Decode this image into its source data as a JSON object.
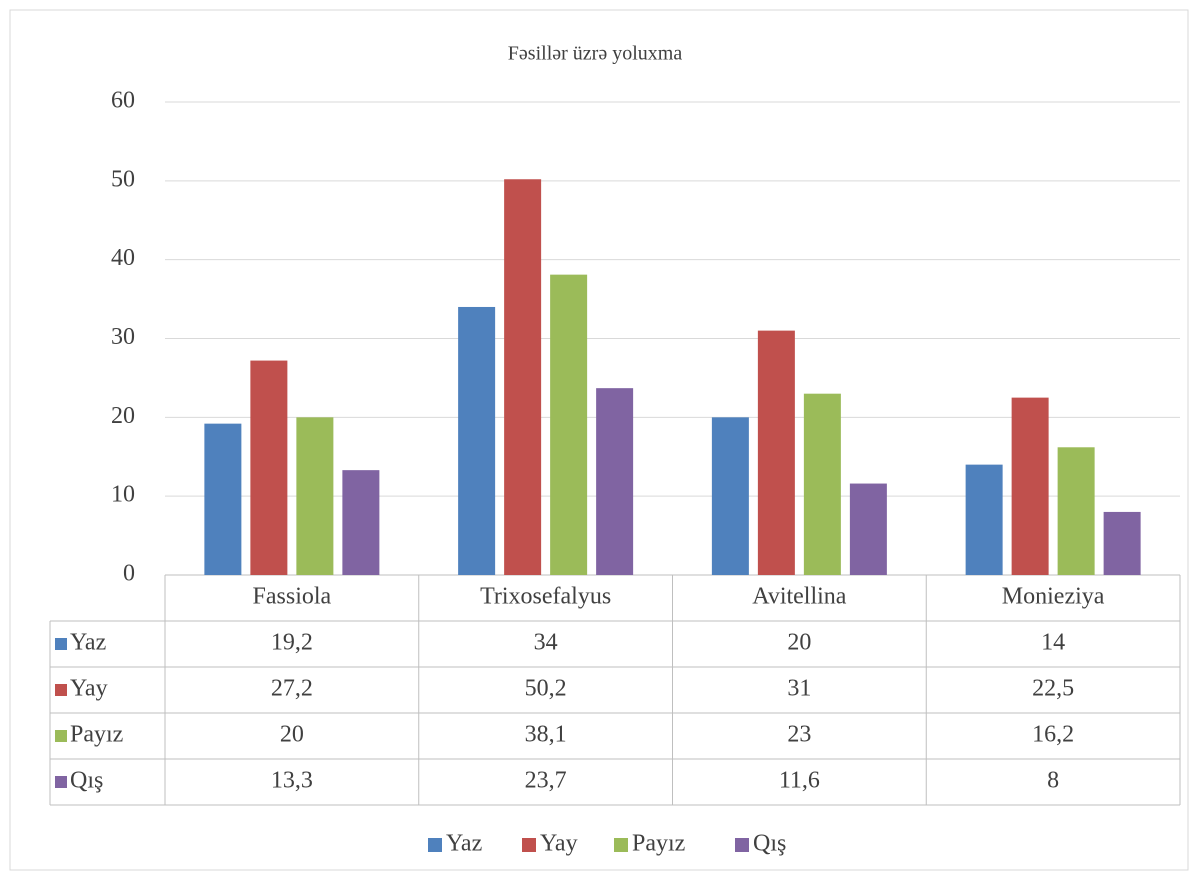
{
  "chart_data": {
    "type": "bar",
    "title": "Fəsillər üzrə yoluxma",
    "categories": [
      "Fassiola",
      "Trixosefalyus",
      "Avitellina",
      "Monieziya"
    ],
    "series": [
      {
        "name": "Yaz",
        "color": "#4f81bd",
        "values": [
          19.2,
          34,
          20,
          14
        ],
        "value_labels": [
          "19,2",
          "34",
          "20",
          "14"
        ]
      },
      {
        "name": "Yay",
        "color": "#c0504d",
        "values": [
          27.2,
          50.2,
          31,
          22.5
        ],
        "value_labels": [
          "27,2",
          "50,2",
          "31",
          "22,5"
        ]
      },
      {
        "name": "Payız",
        "color": "#9bbb59",
        "values": [
          20,
          38.1,
          23,
          16.2
        ],
        "value_labels": [
          "20",
          "38,1",
          "23",
          "16,2"
        ]
      },
      {
        "name": "Qış",
        "color": "#8064a2",
        "values": [
          13.3,
          23.7,
          11.6,
          8
        ],
        "value_labels": [
          "13,3",
          "23,7",
          "11,6",
          "8"
        ]
      }
    ],
    "ylim": [
      0,
      60
    ],
    "yticks": [
      0,
      10,
      20,
      30,
      40,
      50,
      60
    ],
    "grid": true,
    "legend": "bottom"
  }
}
